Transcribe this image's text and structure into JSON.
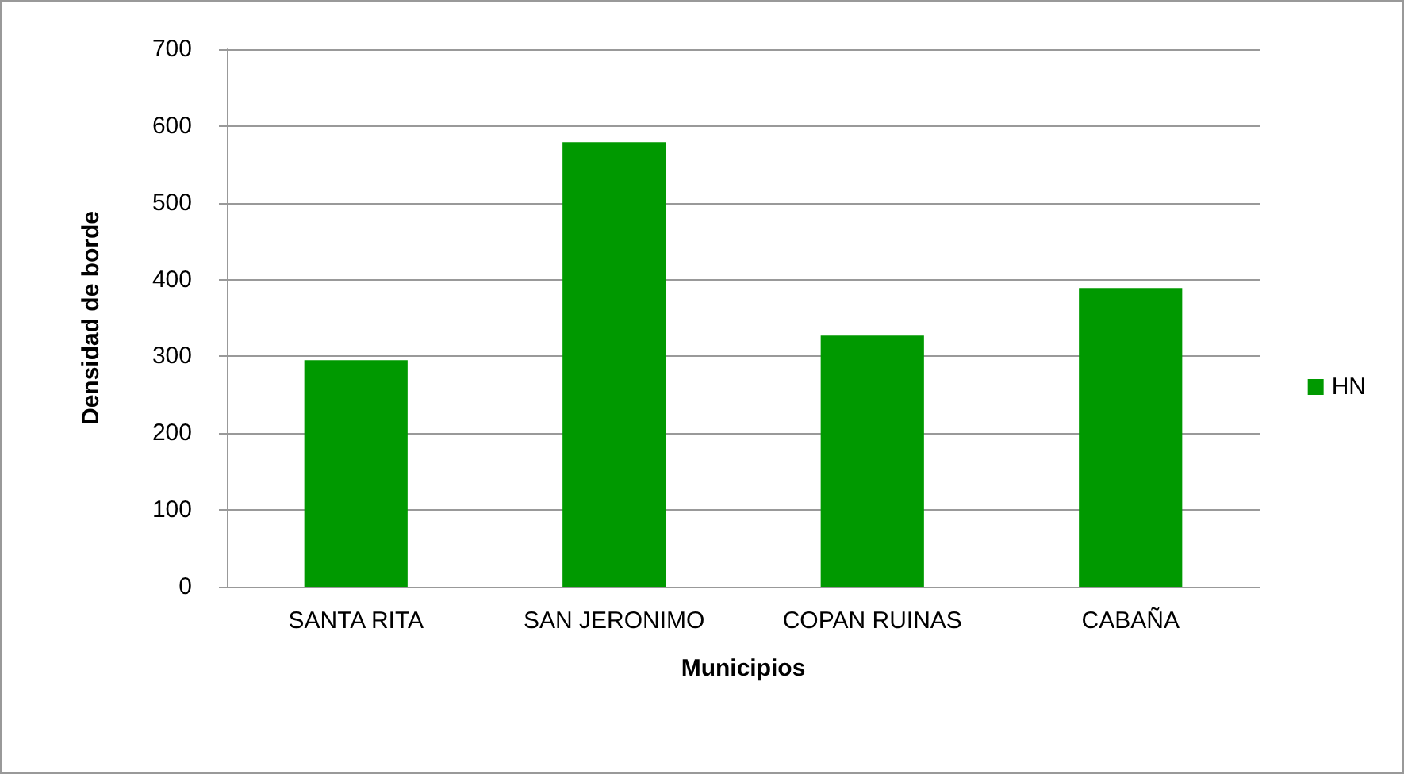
{
  "chart_data": {
    "type": "bar",
    "xlabel": "Municipios",
    "ylabel": "Densidad de borde",
    "categories": [
      "SANTA RITA",
      "SAN JERONIMO",
      "COPAN RUINAS",
      "CABAÑA"
    ],
    "series": [
      {
        "name": "HN",
        "color": "#009900",
        "values": [
          295,
          579,
          327,
          389
        ]
      }
    ],
    "ylim": [
      0,
      700
    ],
    "yticks": [
      0,
      100,
      200,
      300,
      400,
      500,
      600,
      700
    ],
    "grid": "y",
    "legend": "right"
  }
}
